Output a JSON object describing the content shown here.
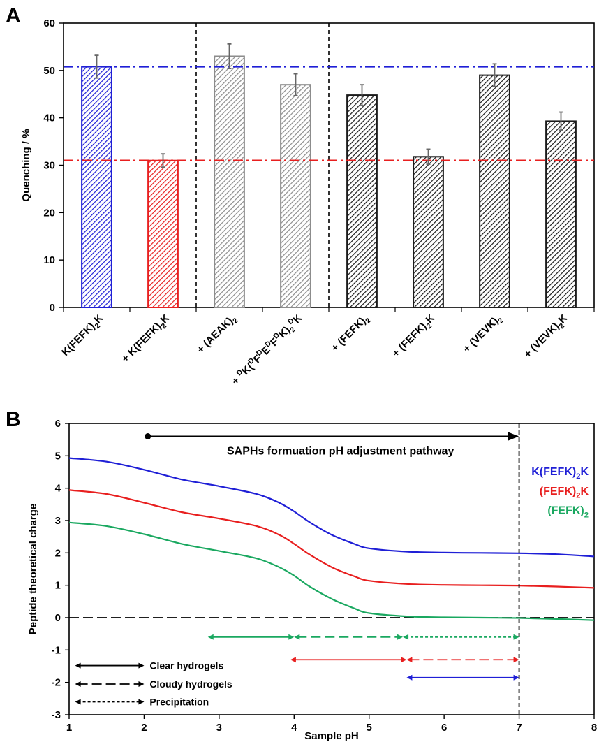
{
  "chart_data": [
    {
      "panel": "A",
      "type": "bar",
      "ylabel": "Quenching / %",
      "ylim": [
        0,
        60
      ],
      "yticks": [
        0,
        10,
        20,
        30,
        40,
        50,
        60
      ],
      "categories": [
        {
          "prefix": "",
          "segments": [
            [
              "K(FEFK)",
              ""
            ],
            [
              "2",
              "sub"
            ],
            [
              "K",
              ""
            ]
          ]
        },
        {
          "prefix": "",
          "segments": [
            [
              "+ K(FEFK)",
              ""
            ],
            [
              "2",
              "sub"
            ],
            [
              "K",
              ""
            ]
          ]
        },
        {
          "prefix": "",
          "segments": [
            [
              "+ (AEAK)",
              ""
            ],
            [
              "2",
              "sub"
            ]
          ]
        },
        {
          "prefix": "",
          "segments": [
            [
              "+ ",
              ""
            ],
            [
              "D",
              "sup"
            ],
            [
              "K(",
              ""
            ],
            [
              "D",
              "sup"
            ],
            [
              "F",
              ""
            ],
            [
              "D",
              "sup"
            ],
            [
              "E",
              ""
            ],
            [
              "D",
              "sup"
            ],
            [
              "F",
              ""
            ],
            [
              "D",
              "sup"
            ],
            [
              "K)",
              ""
            ],
            [
              "2",
              "sub"
            ],
            [
              "D",
              "sup"
            ],
            [
              "K",
              ""
            ]
          ]
        },
        {
          "prefix": "",
          "segments": [
            [
              "+ (FEFK)",
              ""
            ],
            [
              "2",
              "sub"
            ]
          ]
        },
        {
          "prefix": "",
          "segments": [
            [
              "+ (FEFK)",
              ""
            ],
            [
              "2",
              "sub"
            ],
            [
              "K",
              ""
            ]
          ]
        },
        {
          "prefix": "",
          "segments": [
            [
              "+ (VEVK)",
              ""
            ],
            [
              "2",
              "sub"
            ]
          ]
        },
        {
          "prefix": "",
          "segments": [
            [
              "+ (VEVK)",
              ""
            ],
            [
              "2",
              "sub"
            ],
            [
              "K",
              ""
            ]
          ]
        }
      ],
      "category_text": [
        "K(FEFK)2K",
        "+ K(FEFK)2K",
        "+ (AEAK)2",
        "+ DK(DFDEDFDK)2DK",
        "+ (FEFK)2",
        "+ (FEFK)2K",
        "+ (VEVK)2",
        "+ (VEVK)2K"
      ],
      "values": [
        50.8,
        31.0,
        53.0,
        47.0,
        44.8,
        31.8,
        49.0,
        39.3
      ],
      "errors": [
        2.4,
        1.4,
        2.6,
        2.3,
        2.2,
        1.6,
        2.4,
        1.9
      ],
      "bar_colors": [
        "#1f1fd6",
        "#e81f1f",
        "#8c8c8c",
        "#8c8c8c",
        "#1a1a1a",
        "#1a1a1a",
        "#1a1a1a",
        "#1a1a1a"
      ],
      "reference_lines": [
        {
          "y": 50.8,
          "color": "#1f1fd6",
          "style": "dash-dot"
        },
        {
          "y": 31.0,
          "color": "#e81f1f",
          "style": "dash-dot"
        }
      ],
      "group_separators_after_index": [
        1,
        3
      ],
      "hatched": true
    },
    {
      "panel": "B",
      "type": "line",
      "xlabel": "Sample pH",
      "ylabel": "Peptide theoretical charge",
      "xlim": [
        1,
        8
      ],
      "ylim": [
        -3,
        6
      ],
      "xticks": [
        1,
        2,
        3,
        4,
        5,
        6,
        7,
        8
      ],
      "yticks": [
        -3,
        -2,
        -1,
        0,
        1,
        2,
        3,
        4,
        5,
        6
      ],
      "series": [
        {
          "name": "K(FEFK)2K",
          "label_segments": [
            [
              "K(FEFK)",
              ""
            ],
            [
              "2",
              "sub"
            ],
            [
              "K",
              ""
            ]
          ],
          "color": "#1f1fd6",
          "x": [
            1,
            1.5,
            2,
            2.5,
            3,
            3.5,
            3.8,
            4,
            4.2,
            4.5,
            4.8,
            5,
            5.5,
            6,
            6.5,
            7,
            7.5,
            8
          ],
          "y": [
            4.93,
            4.82,
            4.57,
            4.27,
            4.06,
            3.82,
            3.55,
            3.28,
            2.96,
            2.56,
            2.28,
            2.14,
            2.04,
            2.01,
            2.0,
            1.99,
            1.96,
            1.89
          ]
        },
        {
          "name": "(FEFK)2K",
          "label_segments": [
            [
              "(FEFK)",
              ""
            ],
            [
              "2",
              "sub"
            ],
            [
              "K",
              ""
            ]
          ],
          "color": "#e81f1f",
          "x": [
            1,
            1.5,
            2,
            2.5,
            3,
            3.5,
            3.8,
            4,
            4.2,
            4.5,
            4.8,
            5,
            5.5,
            6,
            6.5,
            7,
            7.5,
            8
          ],
          "y": [
            3.94,
            3.82,
            3.55,
            3.26,
            3.06,
            2.83,
            2.56,
            2.28,
            1.96,
            1.56,
            1.28,
            1.14,
            1.04,
            1.01,
            1.0,
            0.99,
            0.96,
            0.92
          ]
        },
        {
          "name": "(FEFK)2",
          "label_segments": [
            [
              "(FEFK)",
              ""
            ],
            [
              "2",
              "sub"
            ]
          ],
          "color": "#1aa860",
          "x": [
            1,
            1.5,
            2,
            2.5,
            3,
            3.5,
            3.8,
            4,
            4.2,
            4.5,
            4.8,
            5,
            5.5,
            6,
            6.5,
            7,
            7.5,
            8
          ],
          "y": [
            2.94,
            2.83,
            2.58,
            2.28,
            2.06,
            1.83,
            1.56,
            1.3,
            0.97,
            0.58,
            0.29,
            0.14,
            0.04,
            0.01,
            0.0,
            -0.01,
            -0.04,
            -0.08
          ]
        }
      ],
      "zero_line": {
        "y": 0,
        "style": "long-dash",
        "color": "#000000"
      },
      "vertical_line": {
        "x": 7,
        "style": "dash",
        "color": "#000000"
      },
      "annotation": {
        "text": "SAPHs formuation pH adjustment pathway",
        "x_from": 2.05,
        "x_to": 7,
        "y": 5.6
      },
      "ranges": [
        {
          "series": "(FEFK)2",
          "color": "#1aa860",
          "y": -0.6,
          "segments": [
            {
              "from": 2.85,
              "to": 4.0,
              "style": "solid"
            },
            {
              "from": 4.0,
              "to": 5.45,
              "style": "long-dash"
            },
            {
              "from": 5.45,
              "to": 7.0,
              "style": "short-dash"
            }
          ]
        },
        {
          "series": "(FEFK)2K",
          "color": "#e81f1f",
          "y": -1.3,
          "segments": [
            {
              "from": 3.95,
              "to": 5.5,
              "style": "solid"
            },
            {
              "from": 5.5,
              "to": 7.0,
              "style": "long-dash"
            }
          ]
        },
        {
          "series": "K(FEFK)2K",
          "color": "#1f1fd6",
          "y": -1.85,
          "segments": [
            {
              "from": 5.5,
              "to": 7.0,
              "style": "solid"
            }
          ]
        }
      ],
      "legend": [
        {
          "label": "Clear hydrogels",
          "style": "solid",
          "y": -1.48
        },
        {
          "label": "Cloudy hydrogels",
          "style": "long-dash",
          "y": -2.05
        },
        {
          "label": "Precipitation",
          "style": "short-dash",
          "y": -2.6
        }
      ]
    }
  ],
  "panel_labels": {
    "a": "A",
    "b": "B"
  }
}
